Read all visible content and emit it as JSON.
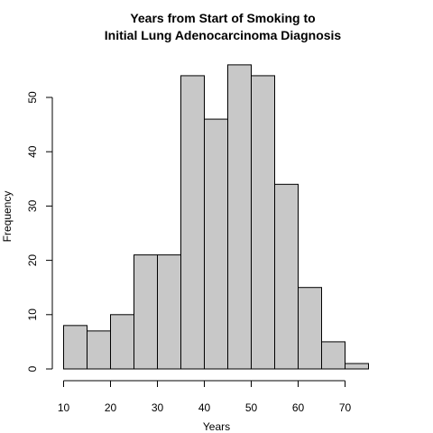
{
  "chart_data": {
    "type": "bar",
    "title_line1": "Years from Start of Smoking to",
    "title_line2": "Initial Lung Adenocarcinoma Diagnosis",
    "xlabel": "Years",
    "ylabel": "Frequency",
    "bins": [
      {
        "start": 10,
        "end": 15,
        "count": 8
      },
      {
        "start": 15,
        "end": 20,
        "count": 7
      },
      {
        "start": 20,
        "end": 25,
        "count": 10
      },
      {
        "start": 25,
        "end": 30,
        "count": 21
      },
      {
        "start": 30,
        "end": 35,
        "count": 21
      },
      {
        "start": 35,
        "end": 40,
        "count": 54
      },
      {
        "start": 40,
        "end": 45,
        "count": 46
      },
      {
        "start": 45,
        "end": 50,
        "count": 56
      },
      {
        "start": 50,
        "end": 55,
        "count": 54
      },
      {
        "start": 55,
        "end": 60,
        "count": 34
      },
      {
        "start": 60,
        "end": 65,
        "count": 15
      },
      {
        "start": 65,
        "end": 70,
        "count": 5
      },
      {
        "start": 70,
        "end": 75,
        "count": 1
      }
    ],
    "x_ticks": [
      10,
      20,
      30,
      40,
      50,
      60,
      70
    ],
    "y_ticks": [
      0,
      10,
      20,
      30,
      40,
      50
    ],
    "xlim": [
      10,
      75
    ],
    "ylim": [
      0,
      56
    ],
    "bar_color": "#c8c8c8",
    "edge_color": "#000000",
    "grid": false,
    "legend": "none"
  }
}
